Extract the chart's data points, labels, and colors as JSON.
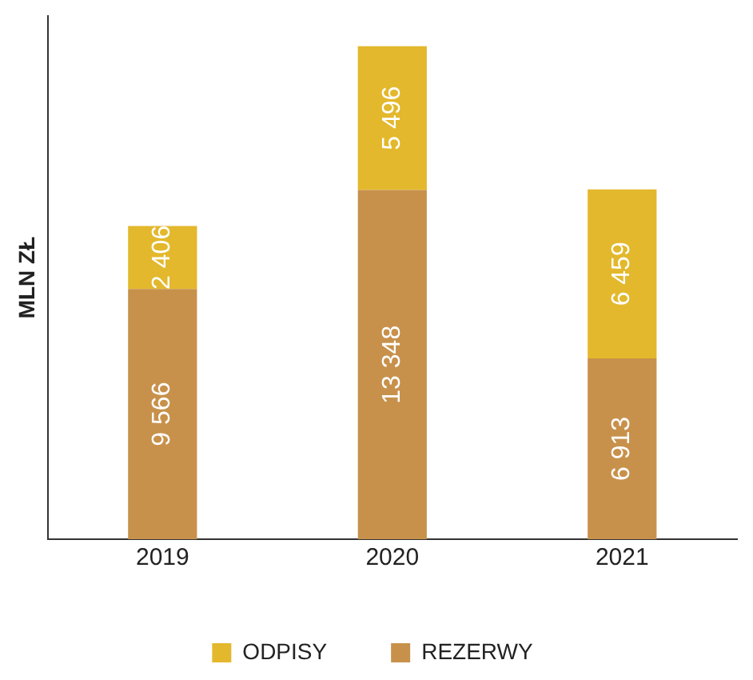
{
  "chart_data": {
    "type": "bar",
    "stacked": true,
    "ylabel": "MLN ZŁ",
    "categories": [
      "2019",
      "2020",
      "2021"
    ],
    "series": [
      {
        "name": "REZERWY",
        "color": "#c8914b",
        "values": [
          9566,
          13348,
          6913
        ],
        "value_labels": [
          "9 566",
          "13 348",
          "6 913"
        ]
      },
      {
        "name": "ODPISY",
        "color": "#e3b82c",
        "values": [
          2406,
          5496,
          6459
        ],
        "value_labels": [
          "2 406",
          "5 496",
          "6 459"
        ]
      }
    ],
    "legend": "bottom",
    "grid": false,
    "tick_labels": "x"
  }
}
